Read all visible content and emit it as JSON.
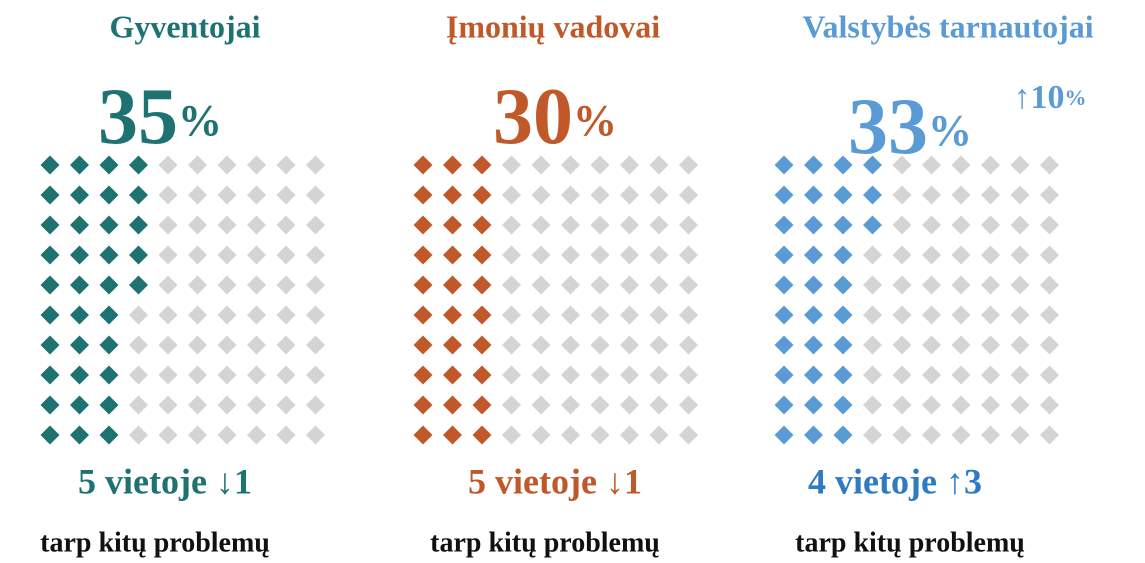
{
  "chart_data": [
    {
      "type": "waffle",
      "title": "Gyventojai",
      "value": 35,
      "unit": "%",
      "color": "#1e7272",
      "rest_color": "#d4d4d4",
      "rows": 10,
      "cols": 10,
      "rank": "5 vietoje ↓1",
      "rank_color": "#1e7272",
      "subtitle": "tarp kitų problemų"
    },
    {
      "type": "waffle",
      "title": "Įmonių vadovai",
      "value": 30,
      "unit": "%",
      "color": "#c0582a",
      "rest_color": "#d4d4d4",
      "rows": 10,
      "cols": 10,
      "rank": "5 vietoje ↓1",
      "rank_color": "#c0582a",
      "subtitle": "tarp kitų problemų"
    },
    {
      "type": "waffle",
      "title": "Valstybės tarnautojai",
      "value": 33,
      "unit": "%",
      "color": "#5b9bd5",
      "rest_color": "#d4d4d4",
      "rows": 10,
      "cols": 10,
      "rank": "4 vietoje ↑3",
      "rank_color": "#2e7bc4",
      "subtitle": "tarp kitų problemų",
      "annotation": {
        "text": "↑10",
        "unit": "%"
      }
    }
  ]
}
